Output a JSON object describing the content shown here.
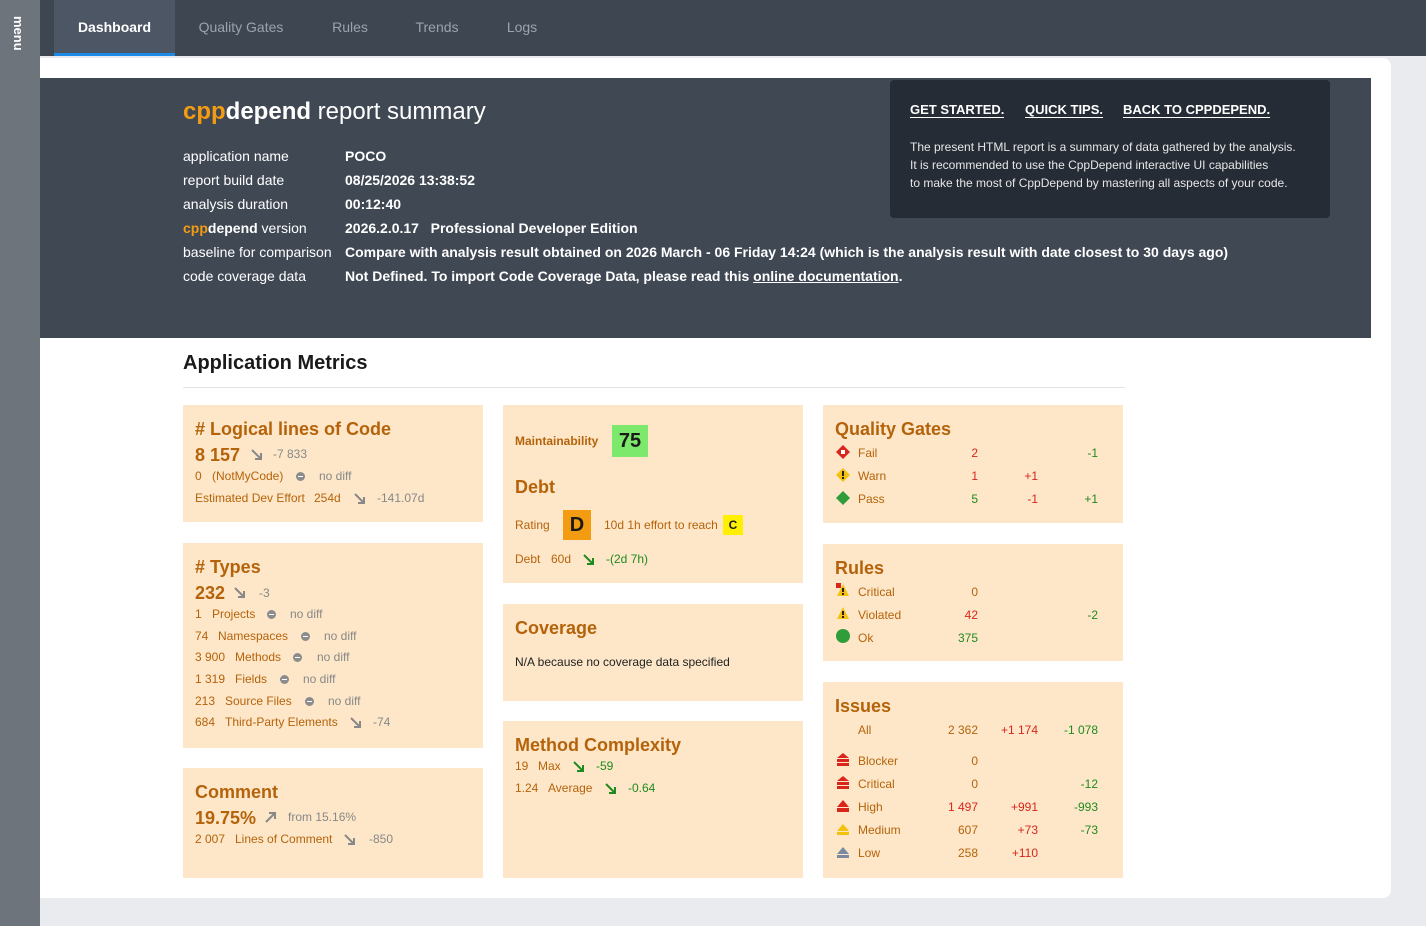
{
  "sidebar": {
    "menu_label": "menu"
  },
  "nav": {
    "tabs": [
      "Dashboard",
      "Quality Gates",
      "Rules",
      "Trends",
      "Logs"
    ]
  },
  "header": {
    "title_cpp": "cpp",
    "title_depend": "depend",
    "title_rest": " report summary",
    "info": {
      "app_name_label": "application name",
      "app_name": "POCO",
      "build_date_label": "report build date",
      "build_date": "08/25/2026 13:38:52",
      "duration_label": "analysis duration",
      "duration": "00:12:40",
      "version_label": " version",
      "version": "2026.2.0.17",
      "edition": "Professional Developer Edition",
      "baseline_label": "baseline for comparison",
      "baseline": "Compare with analysis result obtained on 2026 March - 06 Friday 14:24 (which is the analysis result with date closest to 30 days ago)",
      "coverage_label": "code coverage data",
      "coverage_prefix": "Not Defined. To import Code Coverage Data, please read this ",
      "coverage_link": "online documentation",
      "coverage_suffix": "."
    }
  },
  "tips": {
    "links": [
      "GET STARTED.",
      "QUICK TIPS.",
      "BACK TO CPPDEPEND."
    ],
    "line1": "The present HTML report is a summary of data gathered by the analysis.",
    "line2": "It is recommended to use the CppDepend interactive UI capabilities",
    "line3": "to make the most of CppDepend by mastering all aspects of your code."
  },
  "metrics": {
    "section_title": "Application Metrics",
    "loc": {
      "title": "# Logical lines of Code",
      "value": "8 157",
      "delta": "-7 833",
      "notmycode_value": "0",
      "notmycode_label": "(NotMyCode)",
      "notmycode_diff": "no diff",
      "effort_label": "Estimated Dev Effort",
      "effort_value": "254d",
      "effort_delta": "-141.07d"
    },
    "types": {
      "title": "# Types",
      "value": "232",
      "delta": "-3",
      "rows": [
        {
          "value": "1",
          "label": "Projects",
          "diff": "no diff"
        },
        {
          "value": "74",
          "label": "Namespaces",
          "diff": "no diff"
        },
        {
          "value": "3 900",
          "label": "Methods",
          "diff": "no diff"
        },
        {
          "value": "1 319",
          "label": "Fields",
          "diff": "no diff"
        },
        {
          "value": "213",
          "label": "Source Files",
          "diff": "no diff"
        },
        {
          "value": "684",
          "label": "Third-Party Elements",
          "diff": "-74"
        }
      ]
    },
    "comment": {
      "title": "Comment",
      "value": "19.75%",
      "from": "from 15.16%",
      "lines_value": "2 007",
      "lines_label": "Lines of Comment",
      "lines_delta": "-850"
    },
    "maintainability": {
      "label": "Maintainability",
      "value": "75",
      "color": "#7ce86c"
    },
    "debt": {
      "title": "Debt",
      "rating_label": "Rating",
      "rating": "D",
      "reach_text": "10d 1h effort to reach",
      "reach_rating": "C",
      "debt_label": "Debt",
      "debt_value": "60d",
      "debt_delta": "-(2d 7h)"
    },
    "coverage": {
      "title": "Coverage",
      "text": "N/A because no coverage data specified"
    },
    "complexity": {
      "title": "Method Complexity",
      "max_value": "19",
      "max_label": "Max",
      "max_delta": "-59",
      "avg_value": "1.24",
      "avg_label": "Average",
      "avg_delta": "-0.64"
    },
    "quality_gates": {
      "title": "Quality Gates",
      "fail_label": "Fail",
      "fail_count": "2",
      "fail_d2": "-1",
      "warn_label": "Warn",
      "warn_count": "1",
      "warn_d1": "+1",
      "pass_label": "Pass",
      "pass_count": "5",
      "pass_d1": "-1",
      "pass_d2": "+1"
    },
    "rules": {
      "title": "Rules",
      "critical_label": "Critical",
      "critical_count": "0",
      "violated_label": "Violated",
      "violated_count": "42",
      "violated_d2": "-2",
      "ok_label": "Ok",
      "ok_count": "375"
    },
    "issues": {
      "title": "Issues",
      "all_label": "All",
      "all_count": "2 362",
      "all_d1": "+1 174",
      "all_d2": "-1 078",
      "blocker_label": "Blocker",
      "blocker_count": "0",
      "critical_label": "Critical",
      "critical_count": "0",
      "critical_d2": "-12",
      "high_label": "High",
      "high_count": "1 497",
      "high_d1": "+991",
      "high_d2": "-993",
      "medium_label": "Medium",
      "medium_count": "607",
      "medium_d1": "+73",
      "medium_d2": "-73",
      "low_label": "Low",
      "low_count": "258",
      "low_d1": "+110"
    }
  }
}
